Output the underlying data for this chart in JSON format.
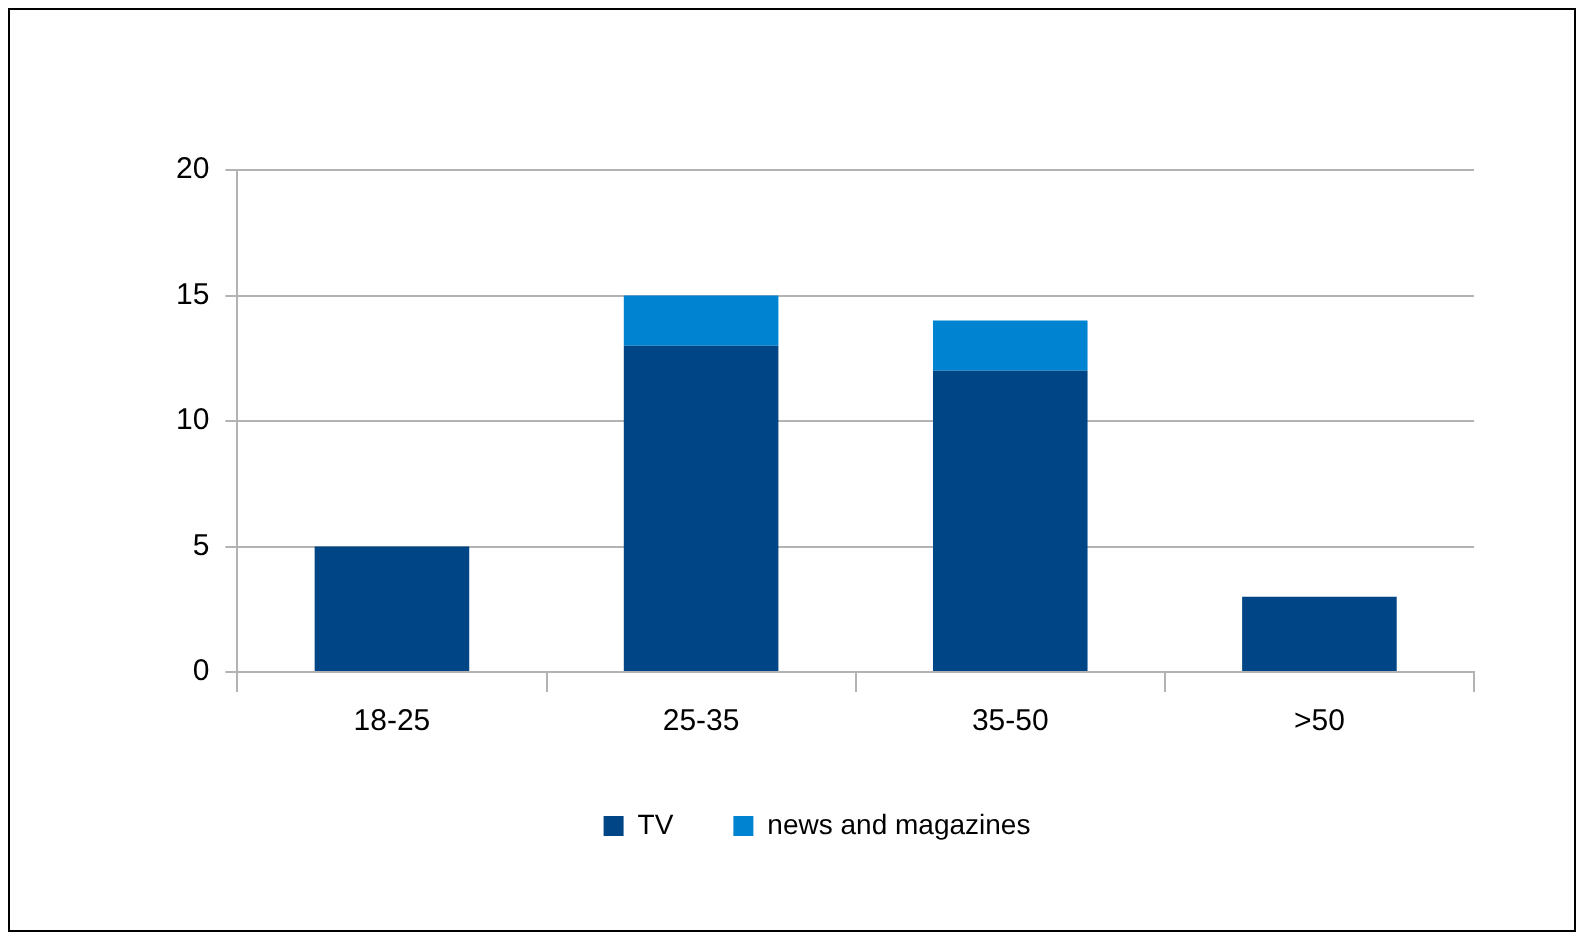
{
  "chart_data": {
    "type": "bar",
    "stacked": true,
    "categories": [
      "18-25",
      "25-35",
      "35-50",
      ">50"
    ],
    "series": [
      {
        "name": "TV",
        "color": "#004586",
        "values": [
          5,
          13,
          12,
          3
        ]
      },
      {
        "name": "news and magazines",
        "color": "#0084d1",
        "values": [
          0,
          2,
          2,
          0
        ]
      }
    ],
    "ylim": [
      0,
      20
    ],
    "yticks": [
      0,
      5,
      10,
      15,
      20
    ],
    "grid": "y",
    "legend": "bottom"
  }
}
